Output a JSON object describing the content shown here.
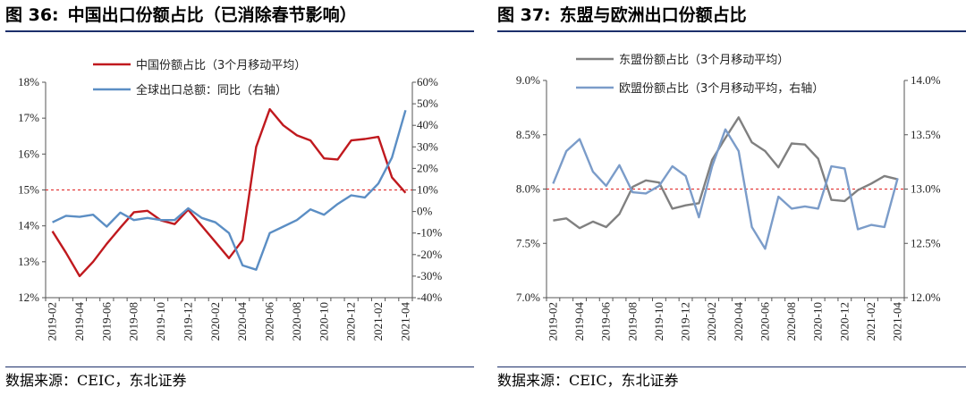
{
  "charts": [
    {
      "fig_label": "图 36:",
      "title": "中国出口份额占比（已消除春节影响）",
      "source": "数据来源：CEIC，东北证券",
      "chart_data": {
        "type": "line",
        "title": "中国出口份额占比（已消除春节影响）",
        "x": [
          "2019-02",
          "2019-03",
          "2019-04",
          "2019-05",
          "2019-06",
          "2019-07",
          "2019-08",
          "2019-09",
          "2019-10",
          "2019-11",
          "2019-12",
          "2020-01",
          "2020-02",
          "2020-03",
          "2020-04",
          "2020-05",
          "2020-06",
          "2020-07",
          "2020-08",
          "2020-09",
          "2020-10",
          "2020-11",
          "2020-12",
          "2021-01",
          "2021-02",
          "2021-03",
          "2021-04"
        ],
        "x_tick_labels": [
          "2019-02",
          "2019-04",
          "2019-06",
          "2019-08",
          "2019-10",
          "2019-12",
          "2020-02",
          "2020-04",
          "2020-06",
          "2020-08",
          "2020-10",
          "2020-12",
          "2021-02",
          "2021-04"
        ],
        "y_left": {
          "ylim": [
            12,
            18
          ],
          "ticks": [
            "12%",
            "13%",
            "14%",
            "15%",
            "16%",
            "17%",
            "18%"
          ]
        },
        "y_right": {
          "ylim": [
            -40,
            60
          ],
          "ticks": [
            "-40%",
            "-30%",
            "-20%",
            "-10%",
            "0%",
            "10%",
            "20%",
            "30%",
            "40%",
            "50%",
            "60%"
          ]
        },
        "reference_line": {
          "axis": "left",
          "value": 15,
          "style": "dashed",
          "color": "#e02020"
        },
        "legend_position": "top",
        "series": [
          {
            "name": "中国份额占比（3个月移动平均）",
            "axis": "left",
            "color": "#c0191e",
            "values": [
              13.85,
              13.25,
              12.6,
              13.0,
              13.5,
              13.95,
              14.38,
              14.42,
              14.15,
              14.05,
              14.45,
              14.0,
              13.55,
              13.1,
              13.6,
              16.2,
              17.25,
              16.8,
              16.52,
              16.38,
              15.88,
              15.85,
              16.38,
              16.42,
              16.48,
              15.35,
              14.92
            ]
          },
          {
            "name": "全球出口总额：同比（右轴）",
            "axis": "right",
            "color": "#5b8ec4",
            "values": [
              -5,
              -2,
              -2.5,
              -1.5,
              -7,
              -0.5,
              -4,
              -3,
              -4,
              -4,
              1.5,
              -3,
              -5,
              -10,
              -25,
              -27,
              -10,
              -7,
              -4,
              1,
              -1.5,
              3.5,
              7.5,
              6.5,
              13,
              25,
              47
            ]
          }
        ]
      }
    },
    {
      "fig_label": "图 37:",
      "title": "东盟与欧洲出口份额占比",
      "source": "数据来源：CEIC，东北证券",
      "chart_data": {
        "type": "line",
        "title": "东盟与欧洲出口份额占比",
        "x": [
          "2019-02",
          "2019-03",
          "2019-04",
          "2019-05",
          "2019-06",
          "2019-07",
          "2019-08",
          "2019-09",
          "2019-10",
          "2019-11",
          "2019-12",
          "2020-01",
          "2020-02",
          "2020-03",
          "2020-04",
          "2020-05",
          "2020-06",
          "2020-07",
          "2020-08",
          "2020-09",
          "2020-10",
          "2020-11",
          "2020-12",
          "2021-01",
          "2021-02",
          "2021-03",
          "2021-04"
        ],
        "x_tick_labels": [
          "2019-02",
          "2019-04",
          "2019-06",
          "2019-08",
          "2019-10",
          "2019-12",
          "2020-02",
          "2020-04",
          "2020-06",
          "2020-08",
          "2020-10",
          "2020-12",
          "2021-02",
          "2021-04"
        ],
        "y_left": {
          "ylim": [
            7.0,
            9.0
          ],
          "ticks": [
            "7.0%",
            "7.5%",
            "8.0%",
            "8.5%",
            "9.0%"
          ]
        },
        "y_right": {
          "ylim": [
            12.0,
            14.0
          ],
          "ticks": [
            "12.0%",
            "12.5%",
            "13.0%",
            "13.5%",
            "14.0%"
          ]
        },
        "reference_line": {
          "axis": "left",
          "value": 8.0,
          "style": "dashed",
          "color": "#e02020"
        },
        "legend_position": "top",
        "series": [
          {
            "name": "东盟份额占比（3个月移动平均）",
            "axis": "left",
            "color": "#808080",
            "values": [
              7.71,
              7.73,
              7.64,
              7.7,
              7.65,
              7.77,
              8.02,
              8.08,
              8.06,
              7.82,
              7.85,
              7.87,
              8.27,
              8.47,
              8.66,
              8.43,
              8.35,
              8.2,
              8.42,
              8.41,
              8.28,
              7.9,
              7.89,
              7.99,
              8.05,
              8.12,
              8.09
            ]
          },
          {
            "name": "欧盟份额占比（3个月移动平均，右轴）",
            "axis": "right",
            "color": "#7b9cc9",
            "values": [
              13.05,
              13.35,
              13.46,
              13.16,
              13.03,
              13.22,
              12.97,
              12.96,
              13.03,
              13.21,
              13.12,
              12.74,
              13.21,
              13.55,
              13.35,
              12.65,
              12.45,
              12.93,
              12.82,
              12.84,
              12.82,
              13.21,
              13.19,
              12.63,
              12.67,
              12.65,
              13.1
            ]
          }
        ]
      }
    }
  ]
}
